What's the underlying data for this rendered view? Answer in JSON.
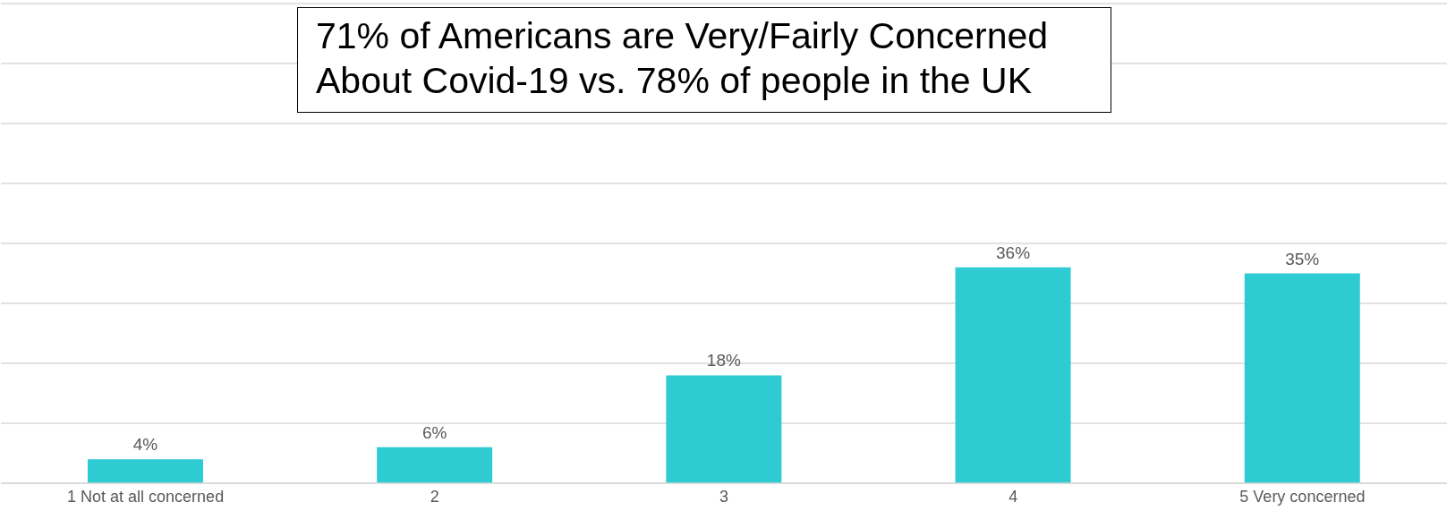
{
  "chart_data": {
    "type": "bar",
    "title": "71% of Americans are Very/Fairly Concerned About Covid-19 vs. 78% of people in the UK",
    "categories": [
      "1 Not at all concerned",
      "2",
      "3",
      "4",
      "5 Very concerned"
    ],
    "values": [
      4,
      6,
      18,
      36,
      35
    ],
    "value_labels": [
      "4%",
      "6%",
      "18%",
      "36%",
      "35%"
    ],
    "color": "#2ecbd3",
    "ylim": [
      0,
      80
    ],
    "yticks": [
      {
        "value": 0,
        "label": null
      },
      {
        "value": 10,
        "label": null
      },
      {
        "value": 20,
        "label": null
      },
      {
        "value": 30,
        "label": null
      },
      {
        "value": 40,
        "label": null
      },
      {
        "value": 50,
        "label": null
      },
      {
        "value": 60,
        "label": null
      },
      {
        "value": 70,
        "label": null
      },
      {
        "value": 80,
        "label": null
      }
    ],
    "grid": "y",
    "tick_labels": "x"
  }
}
